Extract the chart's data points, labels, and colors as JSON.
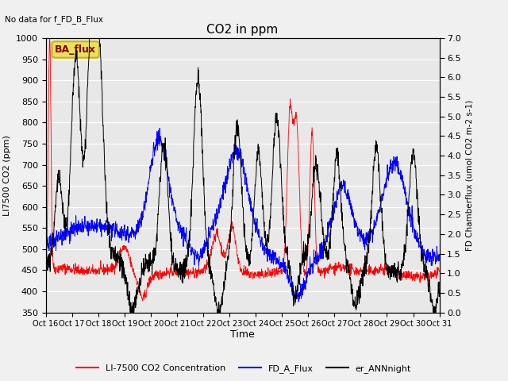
{
  "title": "CO2 in ppm",
  "no_data_text": "No data for f_FD_B_Flux",
  "ba_flux_label": "BA_flux",
  "xlabel": "Time",
  "ylabel_left": "LI7500 CO2 (ppm)",
  "ylabel_right": "FD Chamberflux (umol CO2 m-2 s-1)",
  "ylim_left": [
    350,
    1000
  ],
  "ylim_right": [
    0.0,
    7.0
  ],
  "xtick_labels": [
    "Oct 16",
    "Oct 17",
    "Oct 18",
    "Oct 19",
    "Oct 20",
    "Oct 21",
    "Oct 22",
    "Oct 23",
    "Oct 24",
    "Oct 25",
    "Oct 26",
    "Oct 27",
    "Oct 28",
    "Oct 29",
    "Oct 30",
    "Oct 31"
  ],
  "legend_labels": [
    "LI-7500 CO2 Concentration",
    "FD_A_Flux",
    "er_ANNnight"
  ],
  "line_colors": [
    "red",
    "blue",
    "black"
  ],
  "background_color": "#f0f0f0",
  "plot_bg_color": "#e8e8e8",
  "yticks_left": [
    350,
    400,
    450,
    500,
    550,
    600,
    650,
    700,
    750,
    800,
    850,
    900,
    950,
    1000
  ],
  "yticks_right": [
    0.0,
    0.5,
    1.0,
    1.5,
    2.0,
    2.5,
    3.0,
    3.5,
    4.0,
    4.5,
    5.0,
    5.5,
    6.0,
    6.5,
    7.0
  ]
}
